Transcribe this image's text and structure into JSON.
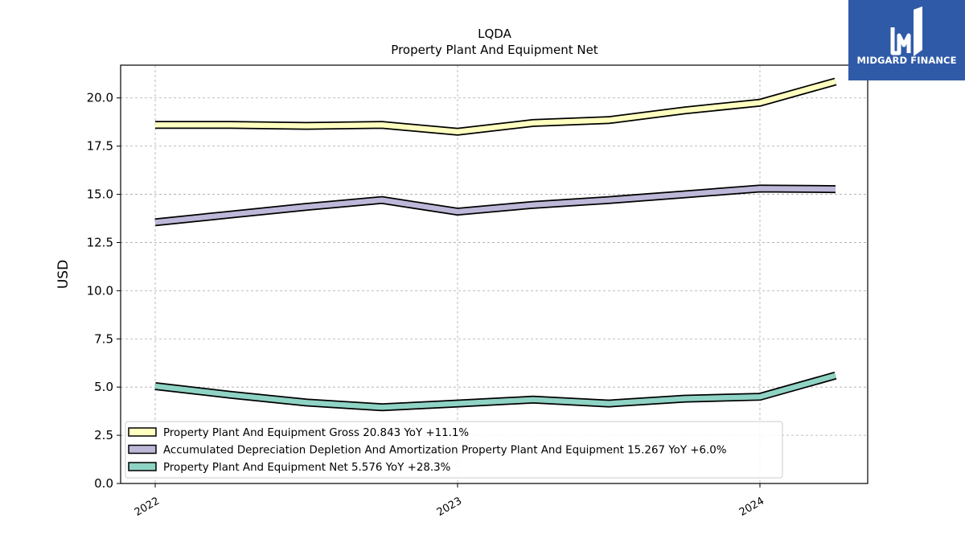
{
  "brand": {
    "name": "MIDGARD FINANCE",
    "bg_color": "#2f5aa8"
  },
  "chart_data": {
    "type": "line",
    "title": "LQDA",
    "subtitle": "Property Plant And Equipment Net",
    "ylabel": "USD",
    "xlabel": "",
    "ylim": [
      0,
      21.7
    ],
    "yticks": [
      "0.0",
      "2.5",
      "5.0",
      "7.5",
      "10.0",
      "12.5",
      "15.0",
      "17.5",
      "20.0"
    ],
    "xticks": [
      "2022",
      "2023",
      "2024"
    ],
    "grid": true,
    "legend_position": "lower-left",
    "x": [
      "2022-01",
      "2022-04",
      "2022-07",
      "2022-10",
      "2023-01",
      "2023-04",
      "2023-07",
      "2023-10",
      "2024-01",
      "2024-04"
    ],
    "series": [
      {
        "name": "Property Plant And Equipment Gross",
        "legend_label": "Property Plant And Equipment Gross  20.843 YoY +11.1%",
        "color": "#ffffc0",
        "values": [
          18.6,
          18.6,
          18.55,
          18.6,
          18.25,
          18.7,
          18.85,
          19.35,
          19.75,
          20.85
        ]
      },
      {
        "name": "Accumulated Depreciation Depletion And Amortization Property Plant And Equipment",
        "legend_label": "Accumulated Depreciation Depletion And Amortization Property Plant And Equipment  15.267 YoY +6.0%",
        "color": "#bdb8d8",
        "values": [
          13.55,
          13.95,
          14.35,
          14.7,
          14.1,
          14.45,
          14.7,
          15.0,
          15.3,
          15.27
        ]
      },
      {
        "name": "Property Plant And Equipment Net",
        "legend_label": "Property Plant And Equipment Net  5.576 YoY +28.3%",
        "color": "#8fd3c4",
        "values": [
          5.05,
          4.6,
          4.2,
          3.95,
          4.15,
          4.35,
          4.15,
          4.4,
          4.5,
          5.6
        ]
      }
    ]
  }
}
